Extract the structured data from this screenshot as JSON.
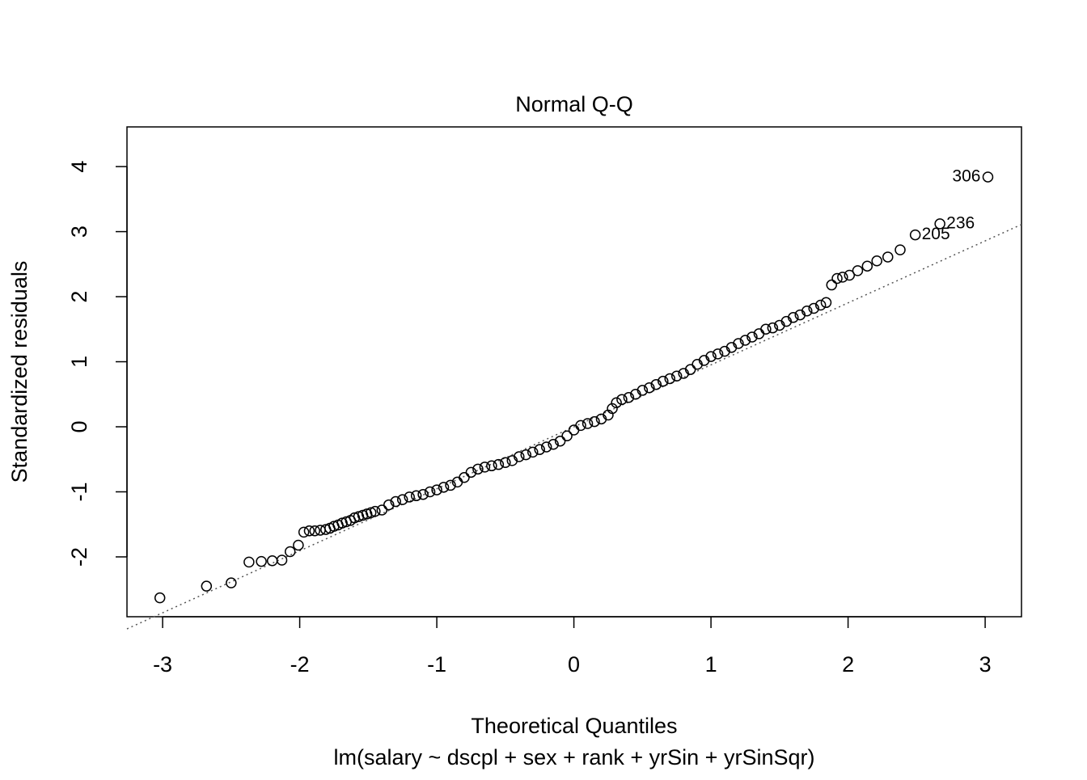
{
  "chart_data": {
    "type": "scatter",
    "title": "Normal Q-Q",
    "x_label": "Theoretical Quantiles",
    "subtitle": "lm(salary ~ dscpl + sex + rank + yrSin + yrSinSqr)",
    "y_label": "Standardized residuals",
    "xlim": [
      -3.26,
      3.265
    ],
    "ylim": [
      -2.92,
      4.61
    ],
    "xticks": [
      -3,
      -2,
      -1,
      0,
      1,
      2,
      3
    ],
    "yticks": [
      -2,
      -1,
      0,
      1,
      2,
      3,
      4
    ],
    "color": "#000000",
    "x": [
      -3.02,
      -2.68,
      -2.5,
      -2.37,
      -2.28,
      -2.2,
      -2.13,
      -2.07,
      -2.01,
      -1.97,
      -1.93,
      -1.89,
      -1.85,
      -1.81,
      -1.78,
      -1.75,
      -1.72,
      -1.69,
      -1.66,
      -1.63,
      -1.6,
      -1.57,
      -1.54,
      -1.51,
      -1.48,
      -1.45,
      -1.4,
      -1.35,
      -1.3,
      -1.25,
      -1.2,
      -1.15,
      -1.1,
      -1.05,
      -1.0,
      -0.95,
      -0.9,
      -0.85,
      -0.8,
      -0.75,
      -0.7,
      -0.65,
      -0.6,
      -0.55,
      -0.5,
      -0.45,
      -0.4,
      -0.35,
      -0.3,
      -0.25,
      -0.2,
      -0.15,
      -0.1,
      -0.05,
      0.0,
      0.05,
      0.1,
      0.15,
      0.2,
      0.25,
      0.28,
      0.31,
      0.35,
      0.4,
      0.45,
      0.5,
      0.55,
      0.6,
      0.65,
      0.7,
      0.75,
      0.8,
      0.85,
      0.9,
      0.95,
      1.0,
      1.05,
      1.1,
      1.15,
      1.2,
      1.25,
      1.3,
      1.35,
      1.4,
      1.45,
      1.5,
      1.55,
      1.6,
      1.65,
      1.7,
      1.75,
      1.8,
      1.84,
      1.88,
      1.92,
      1.96,
      2.01,
      2.07,
      2.14,
      2.21,
      2.29,
      2.38
    ],
    "values": [
      -2.63,
      -2.45,
      -2.4,
      -2.08,
      -2.07,
      -2.06,
      -2.05,
      -1.92,
      -1.82,
      -1.62,
      -1.6,
      -1.6,
      -1.59,
      -1.58,
      -1.56,
      -1.53,
      -1.51,
      -1.48,
      -1.46,
      -1.44,
      -1.4,
      -1.38,
      -1.36,
      -1.34,
      -1.32,
      -1.3,
      -1.28,
      -1.2,
      -1.15,
      -1.12,
      -1.08,
      -1.06,
      -1.04,
      -1.0,
      -0.97,
      -0.93,
      -0.9,
      -0.85,
      -0.78,
      -0.7,
      -0.65,
      -0.62,
      -0.6,
      -0.58,
      -0.55,
      -0.52,
      -0.46,
      -0.43,
      -0.39,
      -0.35,
      -0.31,
      -0.27,
      -0.22,
      -0.14,
      -0.05,
      0.02,
      0.05,
      0.08,
      0.12,
      0.18,
      0.28,
      0.37,
      0.42,
      0.45,
      0.5,
      0.56,
      0.6,
      0.65,
      0.7,
      0.74,
      0.78,
      0.82,
      0.88,
      0.96,
      1.02,
      1.08,
      1.12,
      1.16,
      1.22,
      1.28,
      1.33,
      1.38,
      1.43,
      1.5,
      1.52,
      1.56,
      1.62,
      1.68,
      1.72,
      1.78,
      1.82,
      1.87,
      1.91,
      2.18,
      2.28,
      2.3,
      2.33,
      2.4,
      2.47,
      2.55,
      2.61,
      2.72
    ],
    "labeled_points": {
      "x": [
        3.02,
        2.67,
        2.49
      ],
      "values": [
        3.84,
        3.12,
        2.95
      ],
      "labels": [
        "306",
        "236",
        "205"
      ]
    },
    "reference_line": {
      "x": [
        -3.26,
        3.265
      ],
      "values": [
        -3.107,
        3.11
      ],
      "color": "#555555"
    }
  }
}
